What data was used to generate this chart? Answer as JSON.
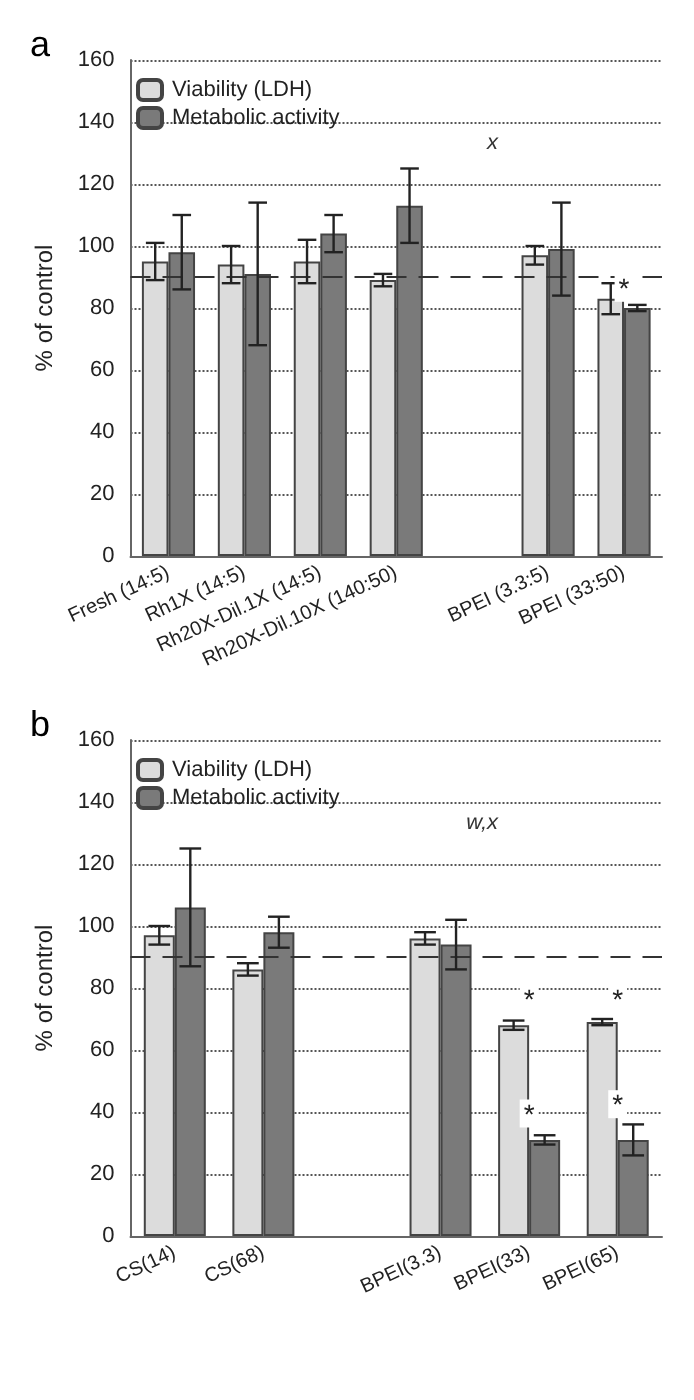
{
  "chart_data": [
    {
      "type": "bar",
      "title": "a",
      "ylabel": "% of control",
      "categories": [
        "Fresh (14:5)",
        "Rh1X (14:5)",
        "Rh20X-Dil.1X (14:5)",
        "Rh20X-Dil.10X (140:50)",
        null,
        "BPEI (3.3:5)",
        "BPEI (33:50)"
      ],
      "series": [
        {
          "name": "Viability (LDH)",
          "color": "#dcdcdc",
          "values": [
            95,
            94,
            95,
            89,
            null,
            97,
            83
          ],
          "errors": [
            6,
            6,
            7,
            2,
            null,
            3,
            5
          ]
        },
        {
          "name": "Metabolic activity",
          "color": "#7a7a7a",
          "values": [
            98,
            91,
            104,
            113,
            null,
            99,
            80
          ],
          "errors": [
            12,
            23,
            6,
            12,
            null,
            15,
            1
          ]
        }
      ],
      "ylim": [
        0,
        160
      ],
      "yticks": [
        0,
        20,
        40,
        60,
        80,
        100,
        120,
        140,
        160
      ],
      "grid": "y",
      "legend": "top left",
      "ref_lines": [
        {
          "axis": "y",
          "value": 90,
          "line_style": "dashed"
        }
      ],
      "annotations": [
        "x",
        {
          "text": "*",
          "x": "BPEI (33:50)",
          "y": 82
        }
      ]
    },
    {
      "type": "bar",
      "title": "b",
      "ylabel": "% of control",
      "categories": [
        "CS(14)",
        "CS(68)",
        null,
        "BPEI(3.3)",
        "BPEI(33)",
        "BPEI(65)"
      ],
      "series": [
        {
          "name": "Viability (LDH)",
          "color": "#dcdcdc",
          "values": [
            97,
            86,
            null,
            96,
            68,
            69
          ],
          "errors": [
            3,
            2,
            null,
            2,
            1.5,
            1
          ]
        },
        {
          "name": "Metabolic activity",
          "color": "#7a7a7a",
          "values": [
            106,
            98,
            null,
            94,
            31,
            31
          ],
          "errors": [
            19,
            5,
            null,
            8,
            1.5,
            5
          ]
        }
      ],
      "ylim": [
        0,
        160
      ],
      "yticks": [
        0,
        20,
        40,
        60,
        80,
        100,
        120,
        140,
        160
      ],
      "grid": "y",
      "legend": "top left",
      "ref_lines": [
        {
          "axis": "y",
          "value": 90,
          "line_style": "dashed"
        }
      ],
      "annotations": [
        "w,x",
        {
          "text": "*",
          "x": "BPEI(33)",
          "y": 72
        },
        {
          "text": "*",
          "x": "BPEI(33)",
          "y": 35
        },
        {
          "text": "*",
          "x": "BPEI(65)",
          "y": 72
        },
        {
          "text": "*",
          "x": "BPEI(65)",
          "y": 38
        }
      ]
    }
  ]
}
